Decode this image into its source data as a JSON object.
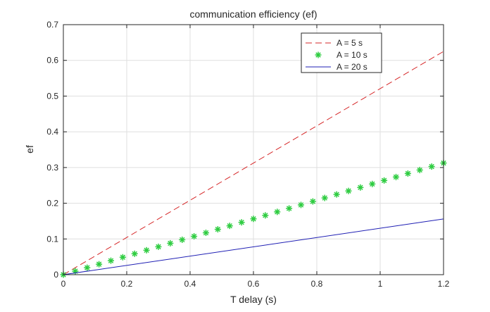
{
  "chart_data": {
    "type": "line",
    "title": "communication efficiency (ef)",
    "xlabel": "T delay (s)",
    "ylabel": "ef",
    "xlim": [
      0,
      1.2
    ],
    "ylim": [
      0,
      0.7
    ],
    "xticks": [
      0,
      0.2,
      0.4,
      0.6,
      0.8,
      1,
      1.2
    ],
    "yticks": [
      0,
      0.1,
      0.2,
      0.3,
      0.4,
      0.5,
      0.6,
      0.7
    ],
    "xtick_labels": [
      "0",
      "0.2",
      "0.4",
      "0.6",
      "0.8",
      "1",
      "1.2"
    ],
    "ytick_labels": [
      "0",
      "0.1",
      "0.2",
      "0.3",
      "0.4",
      "0.5",
      "0.6",
      "0.7"
    ],
    "grid": true,
    "legend_position": "top-right",
    "series": [
      {
        "name": "A = 5 s",
        "style": "dashed-line",
        "color": "#d62728",
        "x": [
          0,
          1.2
        ],
        "y": [
          0,
          0.625
        ]
      },
      {
        "name": "A = 10 s",
        "style": "asterisk-markers",
        "color": "#2ecc40",
        "x": [
          0,
          0.0375,
          0.075,
          0.1125,
          0.15,
          0.1875,
          0.225,
          0.2625,
          0.3,
          0.3375,
          0.375,
          0.4125,
          0.45,
          0.4875,
          0.525,
          0.5625,
          0.6,
          0.6375,
          0.675,
          0.7125,
          0.75,
          0.7875,
          0.825,
          0.8625,
          0.9,
          0.9375,
          0.975,
          1.0125,
          1.05,
          1.0875,
          1.125,
          1.1625,
          1.2
        ],
        "y": [
          0,
          0.0098,
          0.0195,
          0.0293,
          0.0391,
          0.0488,
          0.0586,
          0.0684,
          0.0781,
          0.0879,
          0.0977,
          0.1074,
          0.1172,
          0.127,
          0.1367,
          0.1465,
          0.1563,
          0.166,
          0.1758,
          0.1855,
          0.1953,
          0.2051,
          0.2148,
          0.2246,
          0.2344,
          0.2441,
          0.2539,
          0.2637,
          0.2734,
          0.2832,
          0.293,
          0.3027,
          0.3125
        ]
      },
      {
        "name": "A = 20 s",
        "style": "solid-line",
        "color": "#1f1fb4",
        "x": [
          0,
          1.2
        ],
        "y": [
          0,
          0.156
        ]
      }
    ]
  }
}
